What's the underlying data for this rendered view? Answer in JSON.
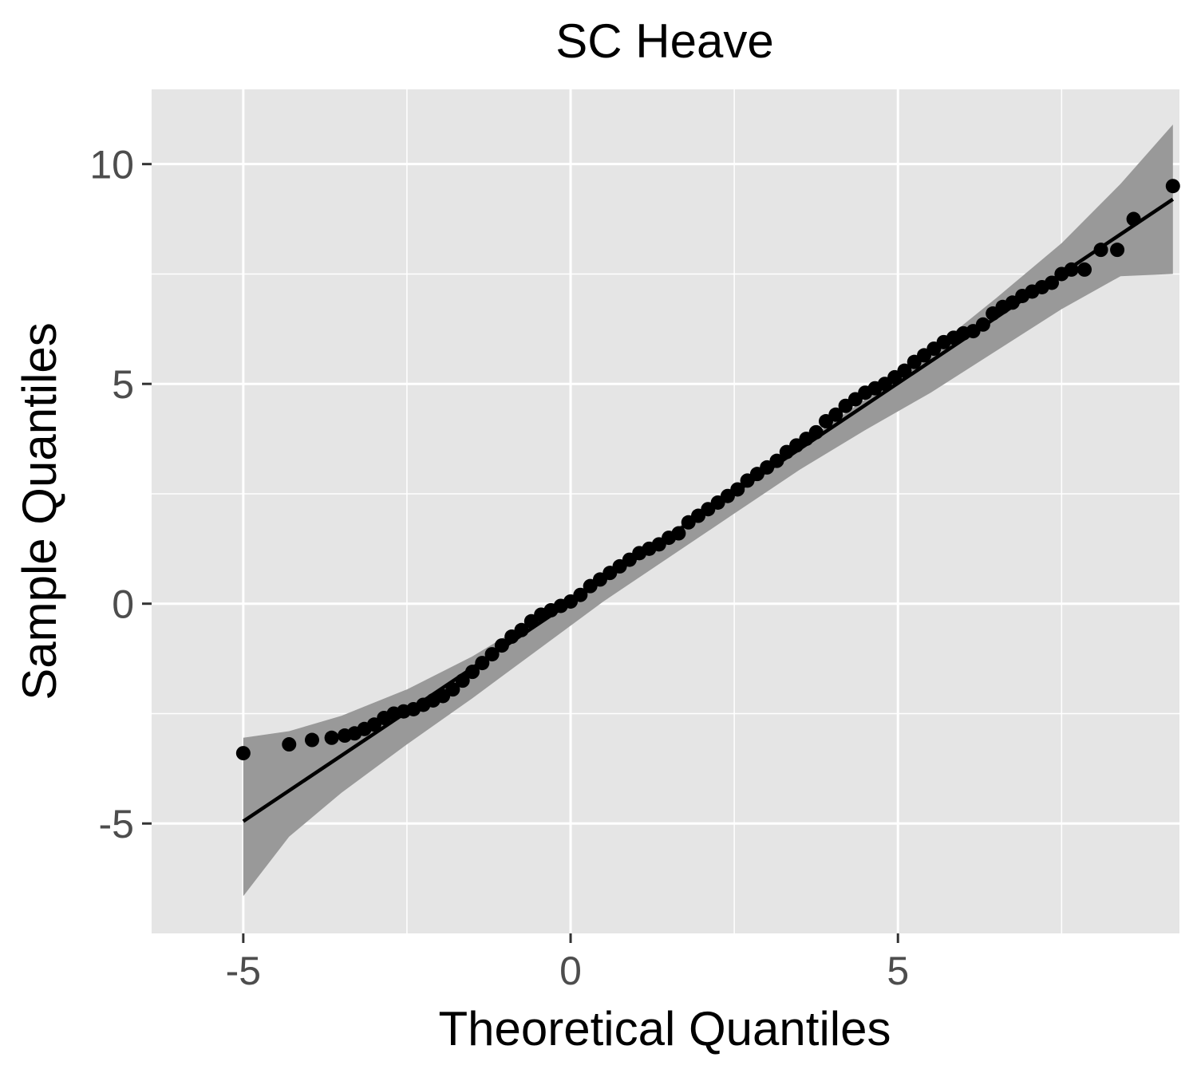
{
  "chart_data": {
    "type": "scatter",
    "title": "SC Heave",
    "xlabel": "Theoretical Quantiles",
    "ylabel": "Sample Quantiles",
    "xlim": [
      -6.4,
      9.3
    ],
    "ylim": [
      -7.5,
      11.7
    ],
    "x_ticks": [
      -5,
      0,
      5
    ],
    "x_tick_labels": [
      "-5",
      "0",
      "5"
    ],
    "y_ticks": [
      -5,
      0,
      5,
      10
    ],
    "y_tick_labels": [
      "-5",
      "0",
      "5",
      "10"
    ],
    "x_minor_ticks": [
      -2.5,
      2.5,
      7.5
    ],
    "y_minor_ticks": [
      -2.5,
      2.5,
      7.5
    ],
    "grid": true,
    "legend": "none",
    "colors": {
      "panel": "#e5e5e5",
      "grid": "#ffffff",
      "points": "#000000",
      "line": "#000000",
      "band": "#999999",
      "tick_label": "#4d4d4d"
    },
    "reference_line": {
      "x": [
        -5,
        9.2
      ],
      "y": [
        -4.95,
        9.2
      ]
    },
    "confidence_band": [
      {
        "x": -5.0,
        "lower": -6.65,
        "upper": -3.05
      },
      {
        "x": -4.3,
        "lower": -5.3,
        "upper": -2.9
      },
      {
        "x": -3.5,
        "lower": -4.3,
        "upper": -2.55
      },
      {
        "x": -2.5,
        "lower": -3.2,
        "upper": -1.95
      },
      {
        "x": -1.5,
        "lower": -2.15,
        "upper": -1.2
      },
      {
        "x": -0.5,
        "lower": -1.05,
        "upper": -0.3
      },
      {
        "x": 0.5,
        "lower": 0.05,
        "upper": 0.6
      },
      {
        "x": 1.5,
        "lower": 1.05,
        "upper": 1.6
      },
      {
        "x": 2.5,
        "lower": 2.05,
        "upper": 2.6
      },
      {
        "x": 3.5,
        "lower": 3.05,
        "upper": 3.6
      },
      {
        "x": 4.5,
        "lower": 3.95,
        "upper": 4.65
      },
      {
        "x": 5.5,
        "lower": 4.8,
        "upper": 5.75
      },
      {
        "x": 6.5,
        "lower": 5.75,
        "upper": 6.95
      },
      {
        "x": 7.5,
        "lower": 6.7,
        "upper": 8.2
      },
      {
        "x": 8.4,
        "lower": 7.45,
        "upper": 9.55
      },
      {
        "x": 9.2,
        "lower": 7.5,
        "upper": 10.9
      }
    ],
    "series": [
      {
        "x": [
          -5.0,
          -4.3,
          -3.95,
          -3.65,
          -3.45,
          -3.3,
          -3.15,
          -3.0,
          -2.85,
          -2.7,
          -2.55,
          -2.4,
          -2.25,
          -2.1,
          -1.95,
          -1.8,
          -1.65,
          -1.5,
          -1.35,
          -1.2,
          -1.05,
          -0.9,
          -0.75,
          -0.6,
          -0.45,
          -0.3,
          -0.15,
          0.0,
          0.15,
          0.3,
          0.45,
          0.6,
          0.75,
          0.9,
          1.05,
          1.2,
          1.35,
          1.5,
          1.65,
          1.8,
          1.95,
          2.1,
          2.25,
          2.4,
          2.55,
          2.7,
          2.85,
          3.0,
          3.15,
          3.3,
          3.45,
          3.6,
          3.75,
          3.9,
          4.05,
          4.2,
          4.35,
          4.5,
          4.65,
          4.8,
          4.95,
          5.1,
          5.25,
          5.4,
          5.55,
          5.7,
          5.85,
          6.0,
          6.15,
          6.3,
          6.45,
          6.6,
          6.75,
          6.9,
          7.05,
          7.2,
          7.35,
          7.5,
          7.65,
          7.85,
          8.1,
          8.35,
          8.6,
          9.2
        ],
        "y": [
          -3.4,
          -3.2,
          -3.1,
          -3.05,
          -3.0,
          -2.95,
          -2.85,
          -2.75,
          -2.6,
          -2.5,
          -2.45,
          -2.4,
          -2.3,
          -2.2,
          -2.1,
          -1.95,
          -1.75,
          -1.55,
          -1.35,
          -1.15,
          -0.95,
          -0.75,
          -0.6,
          -0.4,
          -0.25,
          -0.15,
          -0.05,
          0.05,
          0.2,
          0.4,
          0.55,
          0.7,
          0.85,
          1.0,
          1.15,
          1.25,
          1.35,
          1.5,
          1.6,
          1.85,
          2.0,
          2.15,
          2.3,
          2.45,
          2.6,
          2.8,
          2.95,
          3.1,
          3.25,
          3.45,
          3.6,
          3.75,
          3.9,
          4.15,
          4.3,
          4.5,
          4.65,
          4.8,
          4.9,
          5.0,
          5.15,
          5.3,
          5.5,
          5.65,
          5.8,
          5.95,
          6.05,
          6.15,
          6.2,
          6.35,
          6.6,
          6.75,
          6.85,
          7.0,
          7.1,
          7.2,
          7.3,
          7.5,
          7.6,
          7.6,
          8.05,
          8.05,
          8.75,
          9.5
        ]
      }
    ]
  }
}
